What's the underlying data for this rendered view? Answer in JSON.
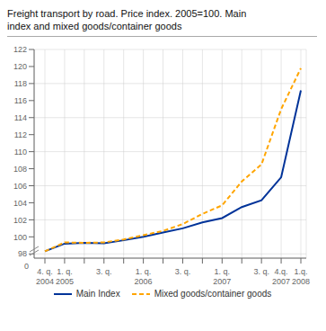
{
  "chart_data": {
    "type": "line",
    "title": "Freight transport by road. Price index. 2005=100. Main\nindex and mixed goods/container goods",
    "categories": [
      "4. q.\n2004",
      "1. q.\n2005",
      null,
      "3. q.",
      null,
      "1. q.\n2006",
      null,
      "3. q.",
      null,
      "1. q.\n2007",
      null,
      "3. q.",
      "4.q.\n2007",
      "1.q.\n2008"
    ],
    "series": [
      {
        "name": "Main Index",
        "color": "#003399",
        "line_style": "solid",
        "values": [
          98.3,
          99.2,
          99.3,
          99.25,
          99.6,
          100.0,
          100.5,
          101.0,
          101.7,
          102.2,
          103.5,
          104.3,
          107.0,
          117.2
        ]
      },
      {
        "name": "Mixed goods/container goods",
        "color": "#FFA500",
        "line_style": "dashed",
        "values": [
          98.3,
          99.35,
          99.3,
          99.35,
          99.7,
          100.2,
          100.7,
          101.5,
          102.7,
          103.7,
          106.5,
          108.5,
          115.0,
          119.8
        ]
      }
    ],
    "ylim": [
      97.5,
      122
    ],
    "yticks": [
      98,
      100,
      102,
      104,
      106,
      108,
      110,
      112,
      114,
      116,
      118,
      120,
      122
    ],
    "grid": true,
    "legend": "bottom",
    "annotations": [
      {
        "text": "0"
      }
    ]
  }
}
